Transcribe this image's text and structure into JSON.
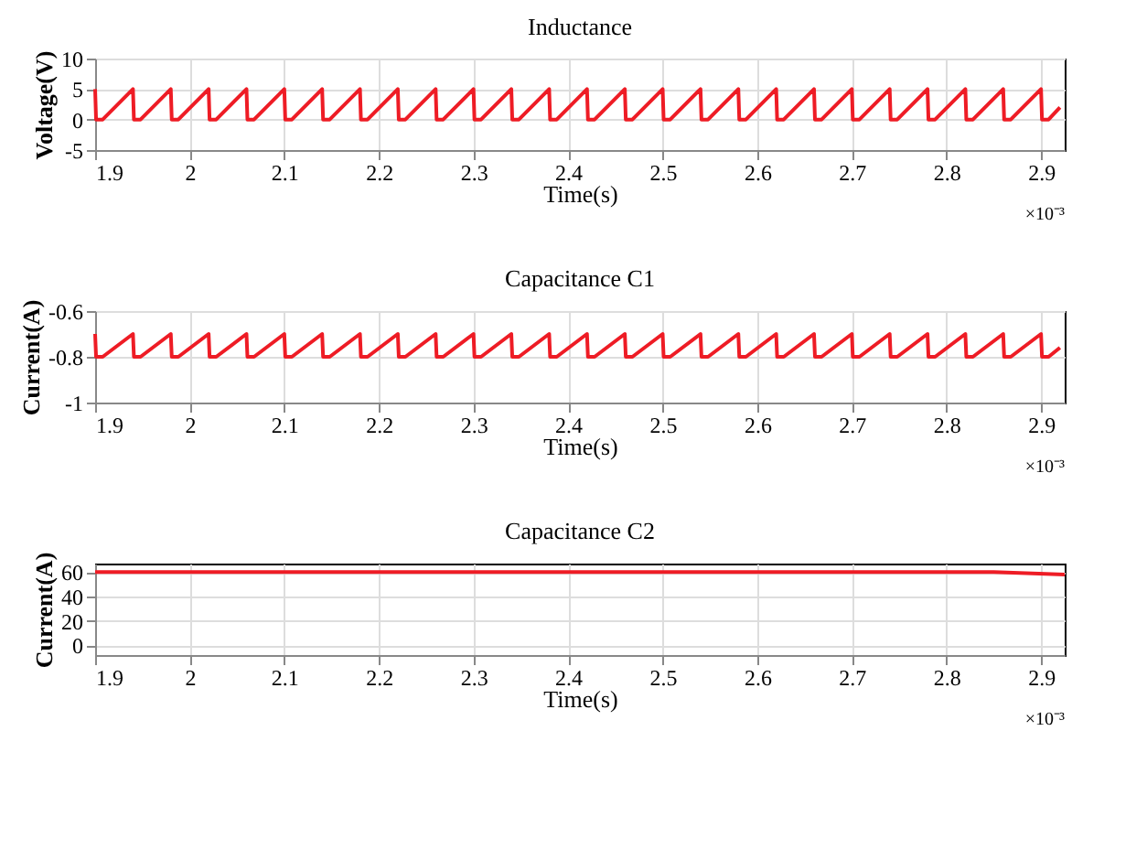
{
  "chart_data": [
    {
      "type": "line",
      "title": "Inductance",
      "xlabel": "Time(s)",
      "ylabel": "Voltage(V)",
      "xlim": [
        1.9,
        2.925
      ],
      "xticks": [
        1.9,
        2,
        2.1,
        2.2,
        2.3,
        2.4,
        2.5,
        2.6,
        2.7,
        2.8,
        2.9
      ],
      "ylim": [
        -5,
        10
      ],
      "yticks": [
        -5,
        0,
        5,
        10
      ],
      "grid": true,
      "annotations": [
        "×10⁻³"
      ],
      "series": [
        {
          "color": "#ee1c25",
          "x": [
            1.9,
            1.901,
            1.908,
            1.94,
            1.941,
            1.948,
            1.98,
            1.981,
            1.988,
            2.02,
            2.021,
            2.028,
            2.06,
            2.061,
            2.068,
            2.1,
            2.101,
            2.108,
            2.14,
            2.141,
            2.148,
            2.18,
            2.181,
            2.188,
            2.22,
            2.221,
            2.228,
            2.26,
            2.261,
            2.268,
            2.3,
            2.301,
            2.308,
            2.34,
            2.341,
            2.348,
            2.38,
            2.381,
            2.388,
            2.42,
            2.421,
            2.428,
            2.46,
            2.461,
            2.468,
            2.5,
            2.501,
            2.508,
            2.54,
            2.541,
            2.548,
            2.58,
            2.581,
            2.588,
            2.62,
            2.621,
            2.628,
            2.66,
            2.661,
            2.668,
            2.7,
            2.701,
            2.708,
            2.74,
            2.741,
            2.748,
            2.78,
            2.781,
            2.788,
            2.82,
            2.821,
            2.828,
            2.86,
            2.861,
            2.868,
            2.9,
            2.901,
            2.908,
            2.92
          ],
          "values": [
            5,
            0,
            0,
            5,
            0,
            0,
            5,
            0,
            0,
            5,
            0,
            0,
            5,
            0,
            0,
            5,
            0,
            0,
            5,
            0,
            0,
            5,
            0,
            0,
            5,
            0,
            0,
            5,
            0,
            0,
            5,
            0,
            0,
            5,
            0,
            0,
            5,
            0,
            0,
            5,
            0,
            0,
            5,
            0,
            0,
            5,
            0,
            0,
            5,
            0,
            0,
            5,
            0,
            0,
            5,
            0,
            0,
            5,
            0,
            0,
            5,
            0,
            0,
            5,
            0,
            0,
            5,
            0,
            0,
            5,
            0,
            0,
            5,
            0,
            0,
            5,
            0,
            0,
            2
          ]
        }
      ]
    },
    {
      "type": "line",
      "title": "Capacitance C1",
      "xlabel": "Time(s)",
      "ylabel": "Current(A)",
      "xlim": [
        1.9,
        2.925
      ],
      "xticks": [
        1.9,
        2,
        2.1,
        2.2,
        2.3,
        2.4,
        2.5,
        2.6,
        2.7,
        2.8,
        2.9
      ],
      "ylim": [
        -1,
        -0.6
      ],
      "yticks": [
        -1,
        -0.8,
        -0.6
      ],
      "grid": true,
      "annotations": [
        "×10⁻³"
      ],
      "series": [
        {
          "color": "#ee1c25",
          "x": [
            1.9,
            1.901,
            1.908,
            1.94,
            1.941,
            1.948,
            1.98,
            1.981,
            1.988,
            2.02,
            2.021,
            2.028,
            2.06,
            2.061,
            2.068,
            2.1,
            2.101,
            2.108,
            2.14,
            2.141,
            2.148,
            2.18,
            2.181,
            2.188,
            2.22,
            2.221,
            2.228,
            2.26,
            2.261,
            2.268,
            2.3,
            2.301,
            2.308,
            2.34,
            2.341,
            2.348,
            2.38,
            2.381,
            2.388,
            2.42,
            2.421,
            2.428,
            2.46,
            2.461,
            2.468,
            2.5,
            2.501,
            2.508,
            2.54,
            2.541,
            2.548,
            2.58,
            2.581,
            2.588,
            2.62,
            2.621,
            2.628,
            2.66,
            2.661,
            2.668,
            2.7,
            2.701,
            2.708,
            2.74,
            2.741,
            2.748,
            2.78,
            2.781,
            2.788,
            2.82,
            2.821,
            2.828,
            2.86,
            2.861,
            2.868,
            2.9,
            2.901,
            2.908,
            2.92
          ],
          "values": [
            -0.7,
            -0.8,
            -0.8,
            -0.7,
            -0.8,
            -0.8,
            -0.7,
            -0.8,
            -0.8,
            -0.7,
            -0.8,
            -0.8,
            -0.7,
            -0.8,
            -0.8,
            -0.7,
            -0.8,
            -0.8,
            -0.7,
            -0.8,
            -0.8,
            -0.7,
            -0.8,
            -0.8,
            -0.7,
            -0.8,
            -0.8,
            -0.7,
            -0.8,
            -0.8,
            -0.7,
            -0.8,
            -0.8,
            -0.7,
            -0.8,
            -0.8,
            -0.7,
            -0.8,
            -0.8,
            -0.7,
            -0.8,
            -0.8,
            -0.7,
            -0.8,
            -0.8,
            -0.7,
            -0.8,
            -0.8,
            -0.7,
            -0.8,
            -0.8,
            -0.7,
            -0.8,
            -0.8,
            -0.7,
            -0.8,
            -0.8,
            -0.7,
            -0.8,
            -0.8,
            -0.7,
            -0.8,
            -0.8,
            -0.7,
            -0.8,
            -0.8,
            -0.7,
            -0.8,
            -0.8,
            -0.7,
            -0.8,
            -0.8,
            -0.7,
            -0.8,
            -0.8,
            -0.7,
            -0.8,
            -0.8,
            -0.76
          ]
        }
      ]
    },
    {
      "type": "line",
      "title": "Capacitance C2",
      "xlabel": "Time(s)",
      "ylabel": "Current(A)",
      "xlim": [
        1.9,
        2.925
      ],
      "xticks": [
        1.9,
        2,
        2.1,
        2.2,
        2.3,
        2.4,
        2.5,
        2.6,
        2.7,
        2.8,
        2.9
      ],
      "ylim": [
        -8,
        67
      ],
      "yticks": [
        0,
        20,
        40,
        60
      ],
      "grid": true,
      "annotations": [
        "×10⁻³"
      ],
      "series": [
        {
          "color": "#ee1c25",
          "x": [
            1.9,
            2.85,
            2.925
          ],
          "values": [
            60,
            60,
            58
          ]
        }
      ]
    }
  ]
}
